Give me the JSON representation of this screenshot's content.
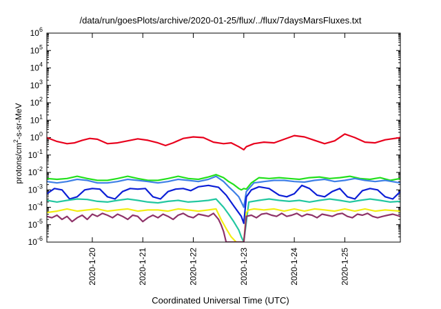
{
  "chart_data": {
    "type": "line",
    "title": "/data/run/goesPlots/archive/2020-01-25/flux/../flux/7daysMarsFluxes.txt",
    "xlabel": "Coordinated Universal Time (UTC)",
    "ylabel": {
      "pre": "protons/cm",
      "sup": "2",
      "post": "-s-sr-MeV"
    },
    "yscale": "log",
    "ylim_exp": [
      -6,
      6
    ],
    "ytick_exps": [
      -6,
      -5,
      -4,
      -3,
      -2,
      -1,
      0,
      1,
      2,
      3,
      4,
      5,
      6
    ],
    "xlim_days": [
      -0.9,
      6.1
    ],
    "xticks": [
      {
        "label": "2020-1-20",
        "day": 0
      },
      {
        "label": "2020-1-21",
        "day": 1
      },
      {
        "label": "2020-1-22",
        "day": 2
      },
      {
        "label": "2020-1-23",
        "day": 3
      },
      {
        "label": "2020-1-24",
        "day": 4
      },
      {
        "label": "2020-1-25",
        "day": 5
      }
    ],
    "grid": false,
    "series": [
      {
        "color": "#e8001c",
        "x": [
          -0.9,
          -0.7,
          -0.5,
          -0.35,
          -0.2,
          -0.05,
          0.1,
          0.3,
          0.5,
          0.7,
          0.9,
          1.1,
          1.3,
          1.45,
          1.6,
          1.8,
          2.0,
          2.2,
          2.4,
          2.6,
          2.75,
          2.9,
          3.0,
          3.05,
          3.2,
          3.4,
          3.6,
          3.8,
          4.0,
          4.2,
          4.4,
          4.6,
          4.8,
          5.0,
          5.2,
          5.4,
          5.6,
          5.8,
          6.1
        ],
        "y": [
          1.0,
          0.6,
          0.45,
          0.5,
          0.7,
          0.9,
          0.8,
          0.45,
          0.5,
          0.65,
          0.85,
          0.7,
          0.5,
          0.35,
          0.5,
          0.9,
          1.1,
          1.0,
          0.55,
          0.45,
          0.5,
          0.3,
          0.2,
          0.3,
          0.45,
          0.55,
          0.5,
          0.8,
          1.3,
          1.1,
          0.7,
          0.45,
          0.65,
          1.6,
          1.0,
          0.55,
          0.5,
          0.75,
          1.0
        ]
      },
      {
        "color": "#22e01c",
        "x": [
          -0.9,
          -0.7,
          -0.5,
          -0.3,
          -0.1,
          0.1,
          0.3,
          0.5,
          0.7,
          0.9,
          1.1,
          1.3,
          1.5,
          1.7,
          1.9,
          2.1,
          2.3,
          2.45,
          2.6,
          2.7,
          2.8,
          2.9,
          2.95,
          3.0,
          3.05,
          3.15,
          3.3,
          3.5,
          3.7,
          3.9,
          4.1,
          4.3,
          4.5,
          4.7,
          4.9,
          5.1,
          5.3,
          5.5,
          5.7,
          5.9,
          6.1
        ],
        "y": [
          0.0045,
          0.004,
          0.0045,
          0.006,
          0.0045,
          0.0035,
          0.0035,
          0.0045,
          0.006,
          0.0045,
          0.0035,
          0.0035,
          0.0045,
          0.006,
          0.0045,
          0.004,
          0.0055,
          0.0075,
          0.005,
          0.003,
          0.002,
          0.0012,
          0.001,
          0.0012,
          0.0011,
          0.0025,
          0.005,
          0.0045,
          0.005,
          0.0045,
          0.004,
          0.005,
          0.0055,
          0.0045,
          0.005,
          0.006,
          0.0045,
          0.004,
          0.005,
          0.0035,
          0.0045
        ]
      },
      {
        "color": "#3d7fe6",
        "x": [
          -0.9,
          -0.7,
          -0.5,
          -0.3,
          -0.1,
          0.1,
          0.3,
          0.5,
          0.7,
          0.9,
          1.1,
          1.3,
          1.5,
          1.7,
          1.9,
          2.1,
          2.3,
          2.45,
          2.6,
          2.7,
          2.8,
          2.9,
          2.95,
          3.0,
          3.05,
          3.2,
          3.4,
          3.6,
          3.8,
          4.0,
          4.2,
          4.4,
          4.6,
          4.8,
          5.0,
          5.2,
          5.4,
          5.6,
          5.8,
          6.1
        ],
        "y": [
          0.003,
          0.0025,
          0.003,
          0.004,
          0.0035,
          0.0025,
          0.0025,
          0.003,
          0.004,
          0.0035,
          0.003,
          0.0025,
          0.003,
          0.004,
          0.0035,
          0.003,
          0.004,
          0.006,
          0.003,
          0.0015,
          0.0008,
          0.0004,
          0.0002,
          0.0001,
          0.0008,
          0.0025,
          0.003,
          0.0035,
          0.0035,
          0.003,
          0.0028,
          0.0035,
          0.004,
          0.003,
          0.0035,
          0.0045,
          0.0035,
          0.003,
          0.0035,
          0.0025
        ]
      },
      {
        "color": "#0b1ed6",
        "x": [
          -0.9,
          -0.75,
          -0.6,
          -0.45,
          -0.3,
          -0.15,
          0.0,
          0.15,
          0.3,
          0.45,
          0.6,
          0.75,
          0.9,
          1.05,
          1.2,
          1.35,
          1.5,
          1.65,
          1.8,
          1.95,
          2.1,
          2.3,
          2.5,
          2.65,
          2.8,
          2.95,
          3.0,
          3.05,
          3.15,
          3.3,
          3.5,
          3.7,
          3.85,
          4.0,
          4.15,
          4.3,
          4.45,
          4.6,
          4.75,
          4.9,
          5.05,
          5.2,
          5.35,
          5.5,
          5.65,
          5.8,
          5.95,
          6.1
        ],
        "y": [
          0.0006,
          0.0012,
          0.001,
          0.0003,
          0.0004,
          0.001,
          0.0012,
          0.0011,
          0.0004,
          0.0003,
          0.0008,
          0.0012,
          0.0011,
          0.0012,
          0.0004,
          0.0003,
          0.0008,
          0.0011,
          0.0012,
          0.0009,
          0.0015,
          0.0018,
          0.0014,
          0.0005,
          0.00012,
          3e-05,
          1.2e-05,
          0.0004,
          0.001,
          0.0015,
          0.0012,
          0.0005,
          0.0004,
          0.0006,
          0.0018,
          0.0012,
          0.0005,
          0.0004,
          0.0008,
          0.0012,
          0.0004,
          0.0003,
          0.0009,
          0.0012,
          0.001,
          0.0004,
          0.0003,
          0.0008
        ]
      },
      {
        "color": "#22c7a0",
        "x": [
          -0.9,
          -0.7,
          -0.5,
          -0.3,
          -0.1,
          0.1,
          0.3,
          0.5,
          0.7,
          0.9,
          1.1,
          1.3,
          1.5,
          1.7,
          1.9,
          2.1,
          2.3,
          2.45,
          2.6,
          2.7,
          2.8,
          2.9,
          2.95,
          3.0,
          3.1,
          3.3,
          3.5,
          3.7,
          3.9,
          4.1,
          4.3,
          4.5,
          4.7,
          4.9,
          5.1,
          5.3,
          5.5,
          5.7,
          5.9,
          6.1
        ],
        "y": [
          0.00025,
          0.0002,
          0.00025,
          0.0003,
          0.00028,
          0.00022,
          0.0002,
          0.00025,
          0.0003,
          0.00025,
          0.0002,
          0.00018,
          0.00022,
          0.00025,
          0.0002,
          0.00022,
          0.00025,
          0.0003,
          0.0001,
          4e-05,
          1.5e-05,
          5e-06,
          2e-06,
          1e-06,
          0.0002,
          0.00025,
          0.0003,
          0.00025,
          0.00022,
          0.00025,
          0.0002,
          0.00025,
          0.0003,
          0.00025,
          0.0002,
          0.00025,
          0.0003,
          0.00025,
          0.0002,
          0.00022
        ]
      },
      {
        "color": "#f2ee12",
        "x": [
          -0.9,
          -0.7,
          -0.5,
          -0.3,
          -0.1,
          0.1,
          0.3,
          0.5,
          0.7,
          0.9,
          1.1,
          1.3,
          1.5,
          1.7,
          1.9,
          2.1,
          2.3,
          2.45,
          2.55,
          2.65,
          2.75,
          2.85,
          2.9,
          3.0,
          3.05,
          3.1,
          3.2,
          3.4,
          3.6,
          3.8,
          4.0,
          4.2,
          4.4,
          4.6,
          4.8,
          5.0,
          5.2,
          5.4,
          5.6,
          5.8,
          6.1
        ],
        "y": [
          5e-05,
          6e-05,
          8e-05,
          6e-05,
          7e-05,
          8e-05,
          6e-05,
          7e-05,
          8e-05,
          6e-05,
          7e-05,
          7e-05,
          6e-05,
          8e-05,
          7e-05,
          6e-05,
          7e-05,
          8e-05,
          2e-05,
          6e-06,
          2e-06,
          1e-06,
          1e-06,
          1e-06,
          5e-05,
          7e-05,
          8e-05,
          7e-05,
          8e-05,
          6e-05,
          8e-05,
          6e-05,
          8e-05,
          7e-05,
          6e-05,
          8e-05,
          6e-05,
          8e-05,
          6e-05,
          7e-05,
          6e-05
        ]
      },
      {
        "color": "#8e3268",
        "x": [
          -0.9,
          -0.8,
          -0.7,
          -0.6,
          -0.5,
          -0.4,
          -0.3,
          -0.2,
          -0.1,
          0.0,
          0.1,
          0.2,
          0.3,
          0.4,
          0.5,
          0.6,
          0.7,
          0.8,
          0.9,
          1.0,
          1.1,
          1.2,
          1.3,
          1.4,
          1.5,
          1.6,
          1.7,
          1.8,
          1.9,
          2.0,
          2.1,
          2.2,
          2.3,
          2.4,
          2.5,
          2.55,
          2.6,
          2.65,
          2.9,
          3.0,
          3.05,
          3.15,
          3.25,
          3.35,
          3.45,
          3.55,
          3.65,
          3.75,
          3.85,
          3.95,
          4.05,
          4.15,
          4.25,
          4.35,
          4.45,
          4.55,
          4.65,
          4.75,
          4.85,
          4.95,
          5.05,
          5.15,
          5.25,
          5.35,
          5.45,
          5.55,
          5.65,
          5.75,
          5.85,
          5.95,
          6.1
        ],
        "y": [
          3e-05,
          2.5e-05,
          3.5e-05,
          2e-05,
          3e-05,
          1.5e-05,
          2.5e-05,
          3.5e-05,
          2e-05,
          4e-05,
          3e-05,
          4.5e-05,
          3.5e-05,
          2.5e-05,
          4e-05,
          3e-05,
          2e-05,
          3.5e-05,
          3e-05,
          1.5e-05,
          2.5e-05,
          3.5e-05,
          2.5e-05,
          4e-05,
          3e-05,
          2e-05,
          3.5e-05,
          4.5e-05,
          3e-05,
          2.5e-05,
          4e-05,
          3.5e-05,
          3e-05,
          4.5e-05,
          2e-05,
          1e-05,
          4e-06,
          1e-06,
          1e-06,
          1e-06,
          3e-05,
          3.5e-05,
          2.5e-05,
          4e-05,
          4.5e-05,
          3.5e-05,
          3e-05,
          4.5e-05,
          3e-05,
          3.5e-05,
          4.5e-05,
          3e-05,
          4e-05,
          3.5e-05,
          2.5e-05,
          4e-05,
          3.5e-05,
          3e-05,
          4e-05,
          4.5e-05,
          3e-05,
          2.5e-05,
          4e-05,
          3.5e-05,
          4.5e-05,
          3e-05,
          2.5e-05,
          3e-05,
          3.5e-05,
          4e-05,
          3e-05
        ]
      }
    ]
  }
}
